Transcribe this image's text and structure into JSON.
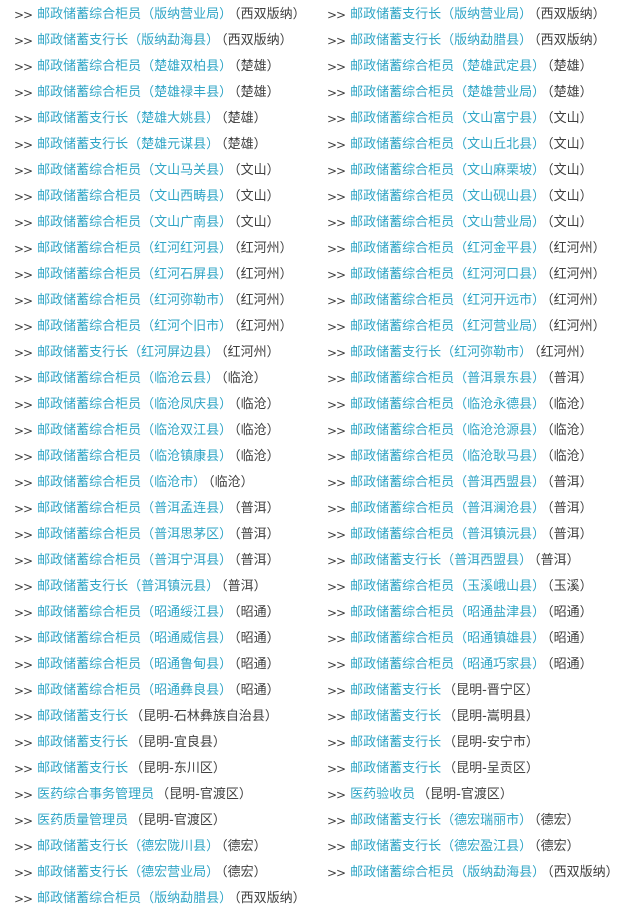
{
  "colors": {
    "link": "#2fa5c6",
    "text": "#3f3f3f",
    "background": "#ffffff"
  },
  "list": {
    "marker": ">>"
  },
  "columns": {
    "left": [
      {
        "link": "邮政储蓄综合柜员（版纳营业局）",
        "suffix": "（西双版纳）"
      },
      {
        "link": "邮政储蓄支行长（版纳勐海县）",
        "suffix": "（西双版纳）"
      },
      {
        "link": "邮政储蓄综合柜员（楚雄双柏县）",
        "suffix": "（楚雄）"
      },
      {
        "link": "邮政储蓄综合柜员（楚雄禄丰县）",
        "suffix": "（楚雄）"
      },
      {
        "link": "邮政储蓄支行长（楚雄大姚县）",
        "suffix": "（楚雄）"
      },
      {
        "link": "邮政储蓄支行长（楚雄元谋县）",
        "suffix": "（楚雄）"
      },
      {
        "link": "邮政储蓄综合柜员（文山马关县）",
        "suffix": "（文山）"
      },
      {
        "link": "邮政储蓄综合柜员（文山西畴县）",
        "suffix": "（文山）"
      },
      {
        "link": "邮政储蓄综合柜员（文山广南县）",
        "suffix": "（文山）"
      },
      {
        "link": "邮政储蓄综合柜员（红河红河县）",
        "suffix": "（红河州）"
      },
      {
        "link": "邮政储蓄综合柜员（红河石屏县）",
        "suffix": "（红河州）"
      },
      {
        "link": "邮政储蓄综合柜员（红河弥勒市）",
        "suffix": "（红河州）"
      },
      {
        "link": "邮政储蓄综合柜员（红河个旧市）",
        "suffix": "（红河州）"
      },
      {
        "link": "邮政储蓄支行长（红河屏边县）",
        "suffix": "（红河州）"
      },
      {
        "link": "邮政储蓄综合柜员（临沧云县）",
        "suffix": "（临沧）"
      },
      {
        "link": "邮政储蓄综合柜员（临沧凤庆县）",
        "suffix": "（临沧）"
      },
      {
        "link": "邮政储蓄综合柜员（临沧双江县）",
        "suffix": "（临沧）"
      },
      {
        "link": "邮政储蓄综合柜员（临沧镇康县）",
        "suffix": "（临沧）"
      },
      {
        "link": "邮政储蓄综合柜员（临沧市）",
        "suffix": "（临沧）"
      },
      {
        "link": "邮政储蓄综合柜员（普洱孟连县）",
        "suffix": "（普洱）"
      },
      {
        "link": "邮政储蓄综合柜员（普洱思茅区）",
        "suffix": "（普洱）"
      },
      {
        "link": "邮政储蓄综合柜员（普洱宁洱县）",
        "suffix": "（普洱）"
      },
      {
        "link": "邮政储蓄支行长（普洱镇沅县）",
        "suffix": "（普洱）"
      },
      {
        "link": "邮政储蓄综合柜员（昭通绥江县）",
        "suffix": "（昭通）"
      },
      {
        "link": "邮政储蓄综合柜员（昭通威信县）",
        "suffix": "（昭通）"
      },
      {
        "link": "邮政储蓄综合柜员（昭通鲁甸县）",
        "suffix": "（昭通）"
      },
      {
        "link": "邮政储蓄综合柜员（昭通彝良县）",
        "suffix": "（昭通）"
      },
      {
        "link": "邮政储蓄支行长",
        "suffix": "（昆明-石林彝族自治县）"
      },
      {
        "link": "邮政储蓄支行长",
        "suffix": "（昆明-宜良县）"
      },
      {
        "link": "邮政储蓄支行长",
        "suffix": "（昆明-东川区）"
      },
      {
        "link": "医药综合事务管理员",
        "suffix": "（昆明-官渡区）"
      },
      {
        "link": "医药质量管理员",
        "suffix": "（昆明-官渡区）"
      },
      {
        "link": "邮政储蓄支行长（德宏陇川县）",
        "suffix": "（德宏）"
      },
      {
        "link": "邮政储蓄支行长（德宏营业局）",
        "suffix": "（德宏）"
      },
      {
        "link": "邮政储蓄综合柜员（版纳勐腊县）",
        "suffix": "（西双版纳）"
      }
    ],
    "right": [
      {
        "link": "邮政储蓄支行长（版纳营业局）",
        "suffix": "（西双版纳）"
      },
      {
        "link": "邮政储蓄支行长（版纳勐腊县）",
        "suffix": "（西双版纳）"
      },
      {
        "link": "邮政储蓄综合柜员（楚雄武定县）",
        "suffix": "（楚雄）"
      },
      {
        "link": "邮政储蓄综合柜员（楚雄营业局）",
        "suffix": "（楚雄）"
      },
      {
        "link": "邮政储蓄综合柜员（文山富宁县）",
        "suffix": "（文山）"
      },
      {
        "link": "邮政储蓄综合柜员（文山丘北县）",
        "suffix": "（文山）"
      },
      {
        "link": "邮政储蓄综合柜员（文山麻栗坡）",
        "suffix": "（文山）"
      },
      {
        "link": "邮政储蓄综合柜员（文山砚山县）",
        "suffix": "（文山）"
      },
      {
        "link": "邮政储蓄综合柜员（文山营业局）",
        "suffix": "（文山）"
      },
      {
        "link": "邮政储蓄综合柜员（红河金平县）",
        "suffix": "（红河州）"
      },
      {
        "link": "邮政储蓄综合柜员（红河河口县）",
        "suffix": "（红河州）"
      },
      {
        "link": "邮政储蓄综合柜员（红河开远市）",
        "suffix": "（红河州）"
      },
      {
        "link": "邮政储蓄综合柜员（红河营业局）",
        "suffix": "（红河州）"
      },
      {
        "link": "邮政储蓄支行长（红河弥勒市）",
        "suffix": "（红河州）"
      },
      {
        "link": "邮政储蓄综合柜员（普洱景东县）",
        "suffix": "（普洱）"
      },
      {
        "link": "邮政储蓄综合柜员（临沧永德县）",
        "suffix": "（临沧）"
      },
      {
        "link": "邮政储蓄综合柜员（临沧沧源县）",
        "suffix": "（临沧）"
      },
      {
        "link": "邮政储蓄综合柜员（临沧耿马县）",
        "suffix": "（临沧）"
      },
      {
        "link": "邮政储蓄综合柜员（普洱西盟县）",
        "suffix": "（普洱）"
      },
      {
        "link": "邮政储蓄综合柜员（普洱澜沧县）",
        "suffix": "（普洱）"
      },
      {
        "link": "邮政储蓄综合柜员（普洱镇沅县）",
        "suffix": "（普洱）"
      },
      {
        "link": "邮政储蓄支行长（普洱西盟县）",
        "suffix": "（普洱）"
      },
      {
        "link": "邮政储蓄综合柜员（玉溪峨山县）",
        "suffix": "（玉溪）"
      },
      {
        "link": "邮政储蓄综合柜员（昭通盐津县）",
        "suffix": "（昭通）"
      },
      {
        "link": "邮政储蓄综合柜员（昭通镇雄县）",
        "suffix": "（昭通）"
      },
      {
        "link": "邮政储蓄综合柜员（昭通巧家县）",
        "suffix": "（昭通）"
      },
      {
        "link": "邮政储蓄支行长",
        "suffix": "（昆明-晋宁区）"
      },
      {
        "link": "邮政储蓄支行长",
        "suffix": "（昆明-嵩明县）"
      },
      {
        "link": "邮政储蓄支行长",
        "suffix": "（昆明-安宁市）"
      },
      {
        "link": "邮政储蓄支行长",
        "suffix": "（昆明-呈贡区）"
      },
      {
        "link": "医药验收员",
        "suffix": "（昆明-官渡区）"
      },
      {
        "link": "邮政储蓄支行长（德宏瑞丽市）",
        "suffix": "（德宏）"
      },
      {
        "link": "邮政储蓄支行长（德宏盈江县）",
        "suffix": "（德宏）"
      },
      {
        "link": "邮政储蓄综合柜员（版纳勐海县）",
        "suffix": "（西双版纳）"
      }
    ]
  }
}
